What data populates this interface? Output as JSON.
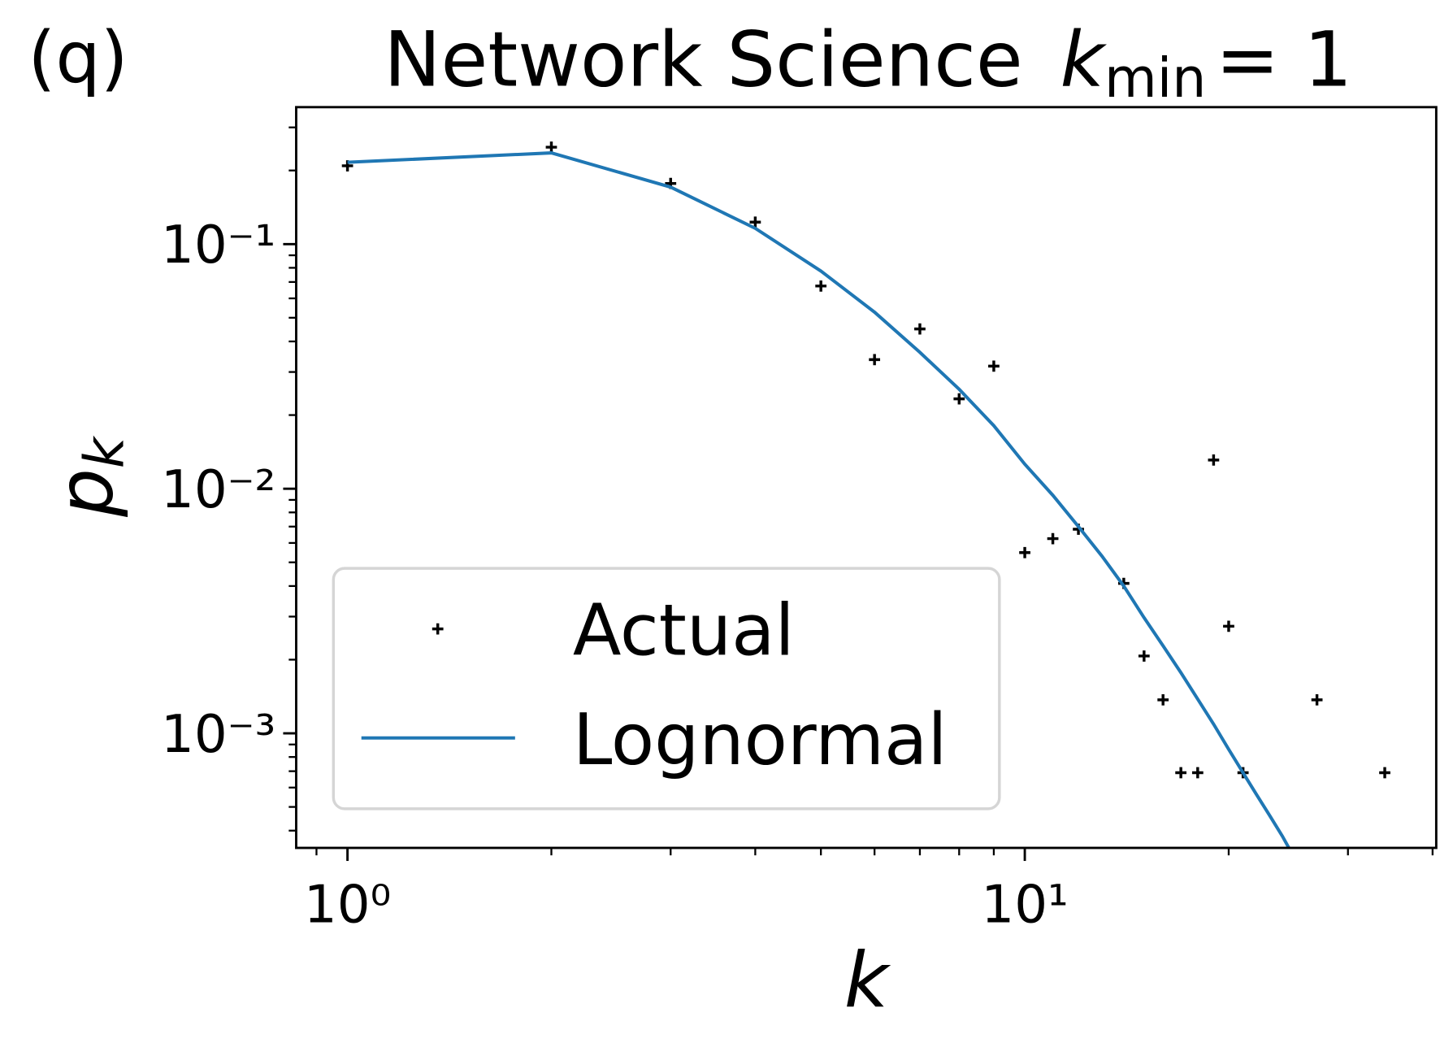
{
  "chart_data": {
    "type": "line",
    "panel_label": "(q)",
    "title": [
      "Network Science",
      "k",
      "min",
      "= 1"
    ],
    "xlabel": "k",
    "ylabel": [
      "p",
      "k"
    ],
    "xscale": "log",
    "yscale": "log",
    "xlim": [
      0.84,
      40.5
    ],
    "ylim": [
      0.00034,
      0.363
    ],
    "xticks": [
      {
        "value": 1,
        "label": "10⁰"
      },
      {
        "value": 10,
        "label": "10¹"
      }
    ],
    "yticks": [
      {
        "value": 0.1,
        "label": "10⁻¹"
      },
      {
        "value": 0.01,
        "label": "10⁻²"
      },
      {
        "value": 0.001,
        "label": "10⁻³"
      }
    ],
    "xminorticks": [
      0.9,
      2,
      3,
      4,
      5,
      6,
      7,
      8,
      9,
      20,
      30,
      40
    ],
    "yminorticks": [
      0.0004,
      0.0005,
      0.0006,
      0.0007,
      0.0008,
      0.0009,
      0.002,
      0.003,
      0.004,
      0.005,
      0.006,
      0.007,
      0.008,
      0.009,
      0.02,
      0.03,
      0.04,
      0.05,
      0.06,
      0.07,
      0.08,
      0.09,
      0.2,
      0.3
    ],
    "legend": "lower left",
    "series": [
      {
        "name": "Actual",
        "style": "markers",
        "color": "#000000",
        "x": [
          1,
          2,
          3,
          4,
          5,
          6,
          7,
          8,
          9,
          10,
          11,
          12,
          14,
          15,
          16,
          17,
          18,
          19,
          20,
          21,
          27,
          34
        ],
        "values": [
          0.209,
          0.249,
          0.177,
          0.123,
          0.0674,
          0.0337,
          0.045,
          0.0233,
          0.0317,
          0.00548,
          0.00625,
          0.00683,
          0.0041,
          0.00207,
          0.00137,
          0.00069,
          0.00069,
          0.0131,
          0.00274,
          0.00069,
          0.00137,
          0.00069
        ]
      },
      {
        "name": "Lognormal",
        "style": "line",
        "color": "#1f77b4",
        "x": [
          1,
          2,
          3,
          4,
          5,
          6,
          7,
          8,
          9,
          10,
          11,
          12,
          13,
          14,
          15,
          16,
          17,
          18,
          19,
          20,
          21,
          22,
          23,
          24,
          25
        ],
        "values": [
          0.216,
          0.236,
          0.171,
          0.116,
          0.0776,
          0.0527,
          0.0361,
          0.0255,
          0.0181,
          0.0126,
          0.0094,
          0.007,
          0.0053,
          0.004,
          0.00297,
          0.00228,
          0.00177,
          0.00138,
          0.00109,
          0.00086,
          0.00069,
          0.00056,
          0.00046,
          0.00038,
          0.00031
        ]
      }
    ]
  }
}
